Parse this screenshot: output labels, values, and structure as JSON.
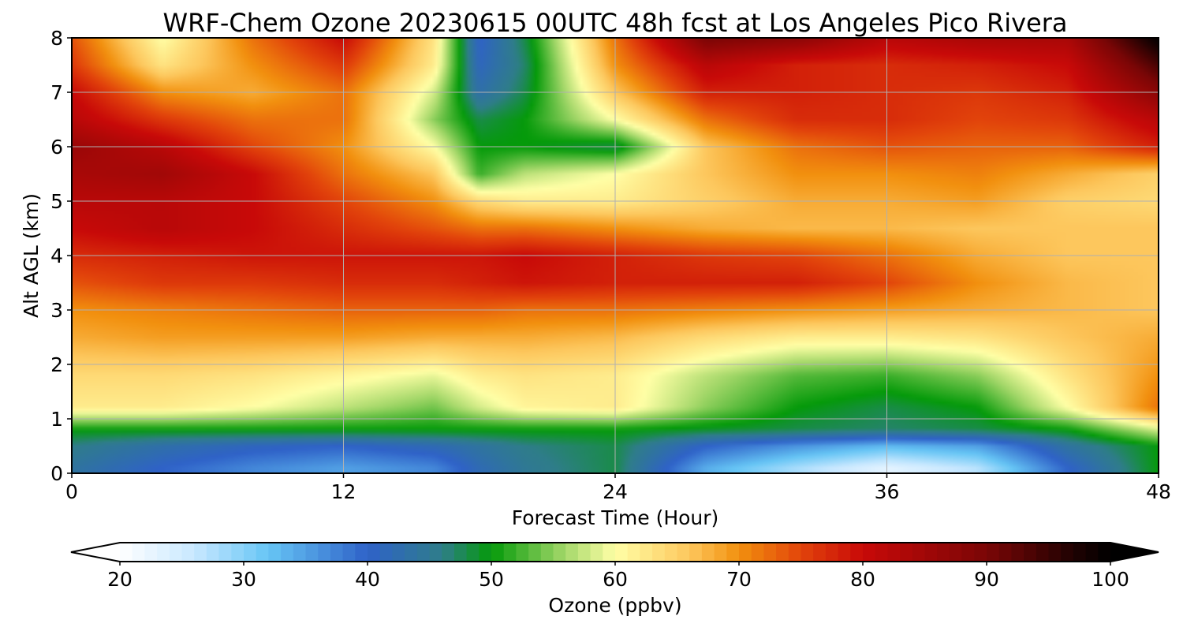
{
  "chart_data": {
    "type": "heatmap",
    "title": "WRF-Chem Ozone  20230615 00UTC 48h fcst at Los Angeles Pico Rivera",
    "xlabel": "Forecast Time (Hour)",
    "ylabel": "Alt AGL (km)",
    "xlim": [
      0,
      48
    ],
    "ylim": [
      0,
      8
    ],
    "x_ticks": [
      "0",
      "12",
      "24",
      "36",
      "48"
    ],
    "y_ticks": [
      "0",
      "1",
      "2",
      "3",
      "4",
      "5",
      "6",
      "7",
      "8"
    ],
    "grid": true,
    "x_hours": [
      0,
      4,
      8,
      12,
      16,
      18,
      20,
      24,
      28,
      32,
      36,
      40,
      44,
      48
    ],
    "altitudes_km": [
      0.1,
      0.5,
      0.8,
      1.2,
      1.8,
      2.5,
      3.0,
      3.5,
      4.0,
      4.5,
      5.0,
      5.5,
      6.0,
      6.5,
      7.0,
      7.5,
      8.0
    ],
    "ozone_ppbv": [
      [
        44,
        40,
        37,
        35,
        37,
        42,
        45,
        48,
        34,
        28,
        23,
        27,
        40,
        50
      ],
      [
        46,
        43,
        41,
        40,
        42,
        44,
        46,
        48,
        40,
        36,
        33,
        35,
        44,
        50
      ],
      [
        50,
        50,
        50,
        50,
        50,
        50,
        50,
        50,
        49,
        48,
        47,
        48,
        50,
        58
      ],
      [
        62,
        62,
        60,
        57,
        54,
        58,
        61,
        62,
        55,
        50,
        48,
        50,
        60,
        72
      ],
      [
        64,
        64,
        63,
        61,
        59,
        62,
        63,
        62,
        57,
        53,
        52,
        55,
        63,
        70
      ],
      [
        68,
        69,
        69,
        69,
        68,
        68,
        68,
        67,
        64,
        62,
        62,
        63,
        66,
        68
      ],
      [
        70,
        71,
        72,
        73,
        73,
        73,
        72,
        72,
        71,
        70,
        69,
        68,
        67,
        66
      ],
      [
        74,
        76,
        76,
        77,
        77,
        78,
        79,
        78,
        78,
        78,
        75,
        70,
        67,
        66
      ],
      [
        77,
        78,
        79,
        79,
        79,
        79,
        80,
        78,
        76,
        75,
        72,
        68,
        66,
        66
      ],
      [
        80,
        82,
        80,
        77,
        74,
        72,
        72,
        70,
        68,
        67,
        67,
        66,
        66,
        66
      ],
      [
        82,
        82,
        80,
        75,
        70,
        64,
        62,
        62,
        65,
        68,
        68,
        69,
        65,
        64
      ],
      [
        84,
        85,
        80,
        72,
        66,
        52,
        57,
        60,
        66,
        70,
        70,
        71,
        68,
        65
      ],
      [
        86,
        82,
        75,
        70,
        60,
        50,
        50,
        48,
        66,
        72,
        74,
        73,
        73,
        78
      ],
      [
        82,
        76,
        72,
        72,
        55,
        48,
        50,
        60,
        72,
        77,
        77,
        75,
        76,
        82
      ],
      [
        80,
        70,
        68,
        72,
        58,
        43,
        48,
        66,
        78,
        78,
        77,
        76,
        78,
        88
      ],
      [
        76,
        63,
        70,
        76,
        62,
        41,
        47,
        70,
        82,
        78,
        77,
        78,
        80,
        94
      ],
      [
        74,
        60,
        72,
        80,
        63,
        40,
        48,
        72,
        90,
        88,
        82,
        84,
        84,
        100
      ]
    ],
    "colorbar": {
      "label": "Ozone  (ppbv)",
      "min": 20,
      "max": 100,
      "extend": "both",
      "ticks": [
        "20",
        "30",
        "40",
        "50",
        "60",
        "70",
        "80",
        "90",
        "100"
      ],
      "stops": [
        [
          20,
          "#ffffff"
        ],
        [
          26,
          "#c8e8ff"
        ],
        [
          32,
          "#66c5f5"
        ],
        [
          40,
          "#2f62c8"
        ],
        [
          46,
          "#2f7d8a"
        ],
        [
          50,
          "#059a0a"
        ],
        [
          56,
          "#a5d86a"
        ],
        [
          60,
          "#ffffa6"
        ],
        [
          66,
          "#fdc75d"
        ],
        [
          70,
          "#f2900e"
        ],
        [
          75,
          "#e2440b"
        ],
        [
          80,
          "#c80908"
        ],
        [
          90,
          "#7a0606"
        ],
        [
          97,
          "#1f0202"
        ],
        [
          100,
          "#000000"
        ]
      ]
    }
  }
}
